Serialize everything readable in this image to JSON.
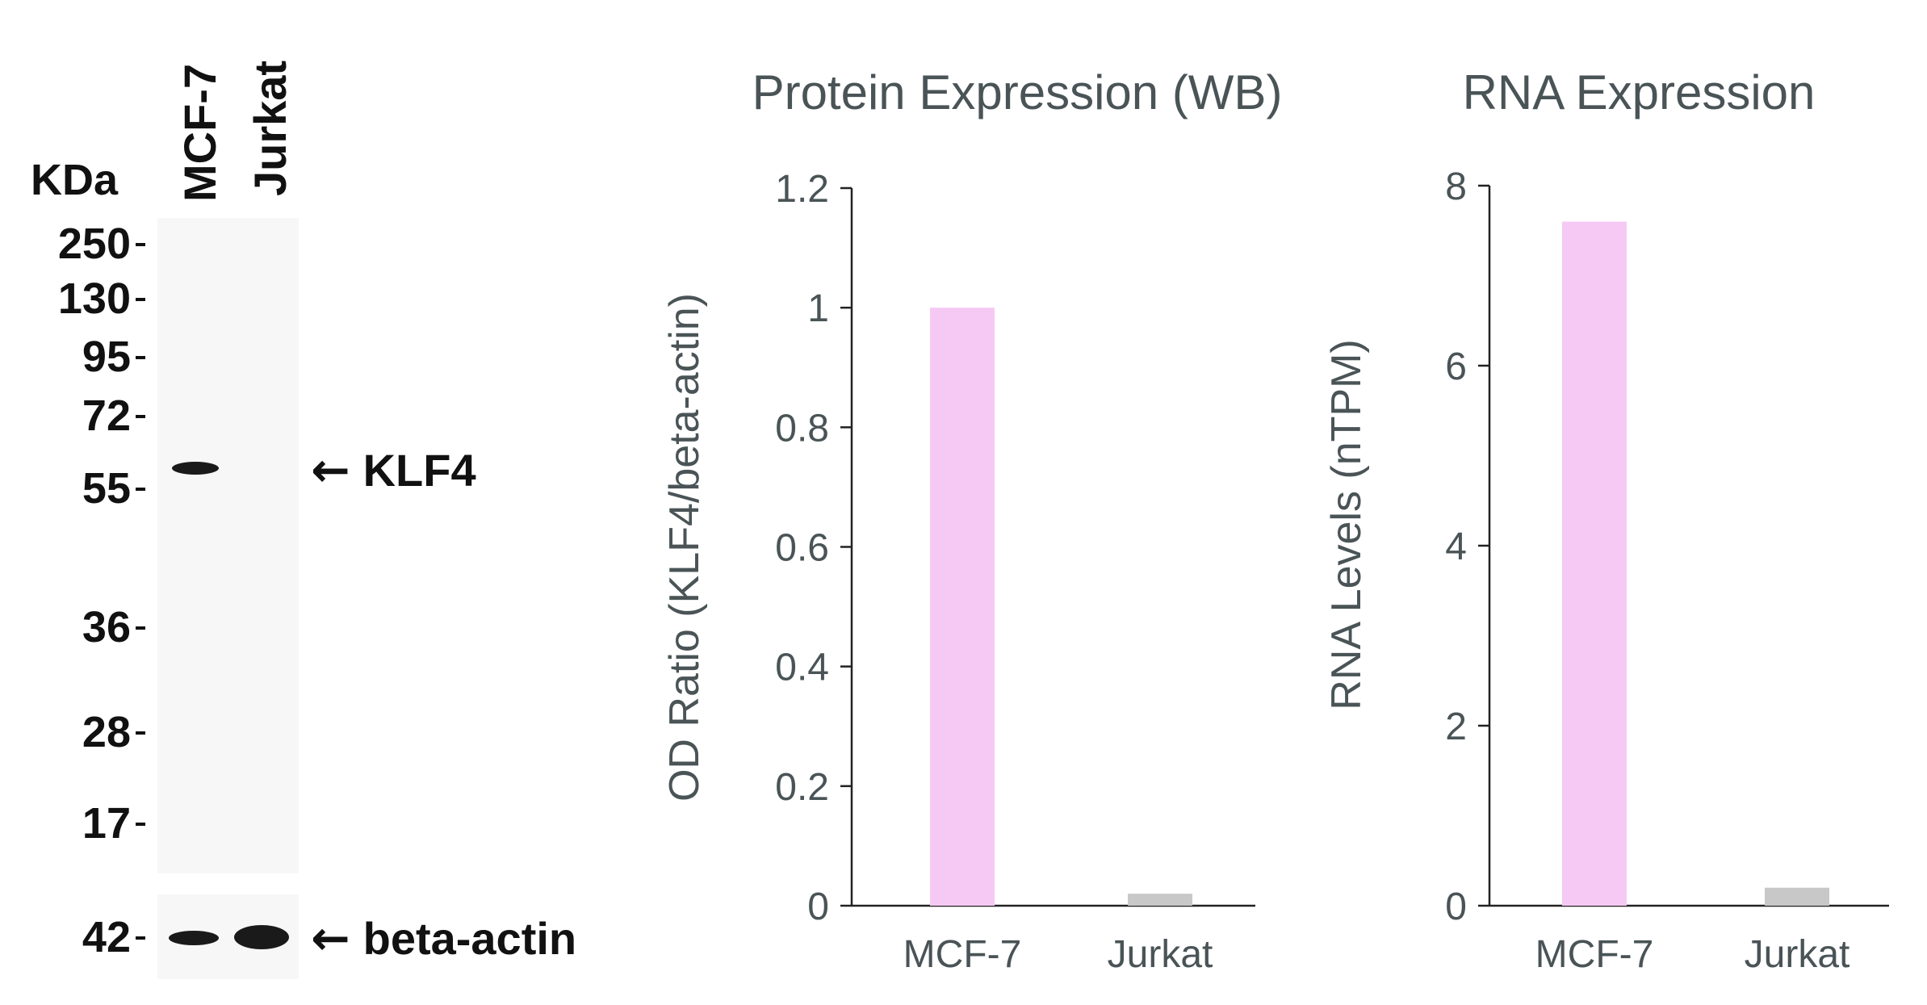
{
  "western_blot": {
    "unit_label": "KDa",
    "lanes": [
      "MCF-7",
      "Jurkat"
    ],
    "markers": [
      "250",
      "130",
      "95",
      "72",
      "55",
      "36",
      "28",
      "17"
    ],
    "loading_marker": "42",
    "target_label": "KLF4",
    "loading_label": "beta-actin"
  },
  "chart_data": [
    {
      "type": "bar",
      "title": "Protein Expression (WB)",
      "categories": [
        "MCF-7",
        "Jurkat"
      ],
      "values": [
        1.0,
        0.02
      ],
      "xlabel": "",
      "ylabel": "OD Ratio (KLF4/beta-actin)",
      "ylim": [
        0,
        1.2
      ],
      "yticks": [
        0,
        0.2,
        0.4,
        0.6,
        0.8,
        1,
        1.2
      ],
      "ytick_labels": [
        "0",
        "0.2",
        "0.4",
        "0.6",
        "0.8",
        "1",
        "1.2"
      ],
      "bar_colors": [
        "#f5c9f3",
        "#c8c8c8"
      ],
      "grid": false
    },
    {
      "type": "bar",
      "title": "RNA Expression",
      "categories": [
        "MCF-7",
        "Jurkat"
      ],
      "values": [
        7.6,
        0.2
      ],
      "xlabel": "",
      "ylabel": "RNA Levels (nTPM)",
      "ylim": [
        0,
        8
      ],
      "yticks": [
        0,
        2,
        4,
        6,
        8
      ],
      "ytick_labels": [
        "0",
        "2",
        "4",
        "6",
        "8"
      ],
      "bar_colors": [
        "#f5c9f3",
        "#c8c8c8"
      ],
      "grid": false
    }
  ]
}
